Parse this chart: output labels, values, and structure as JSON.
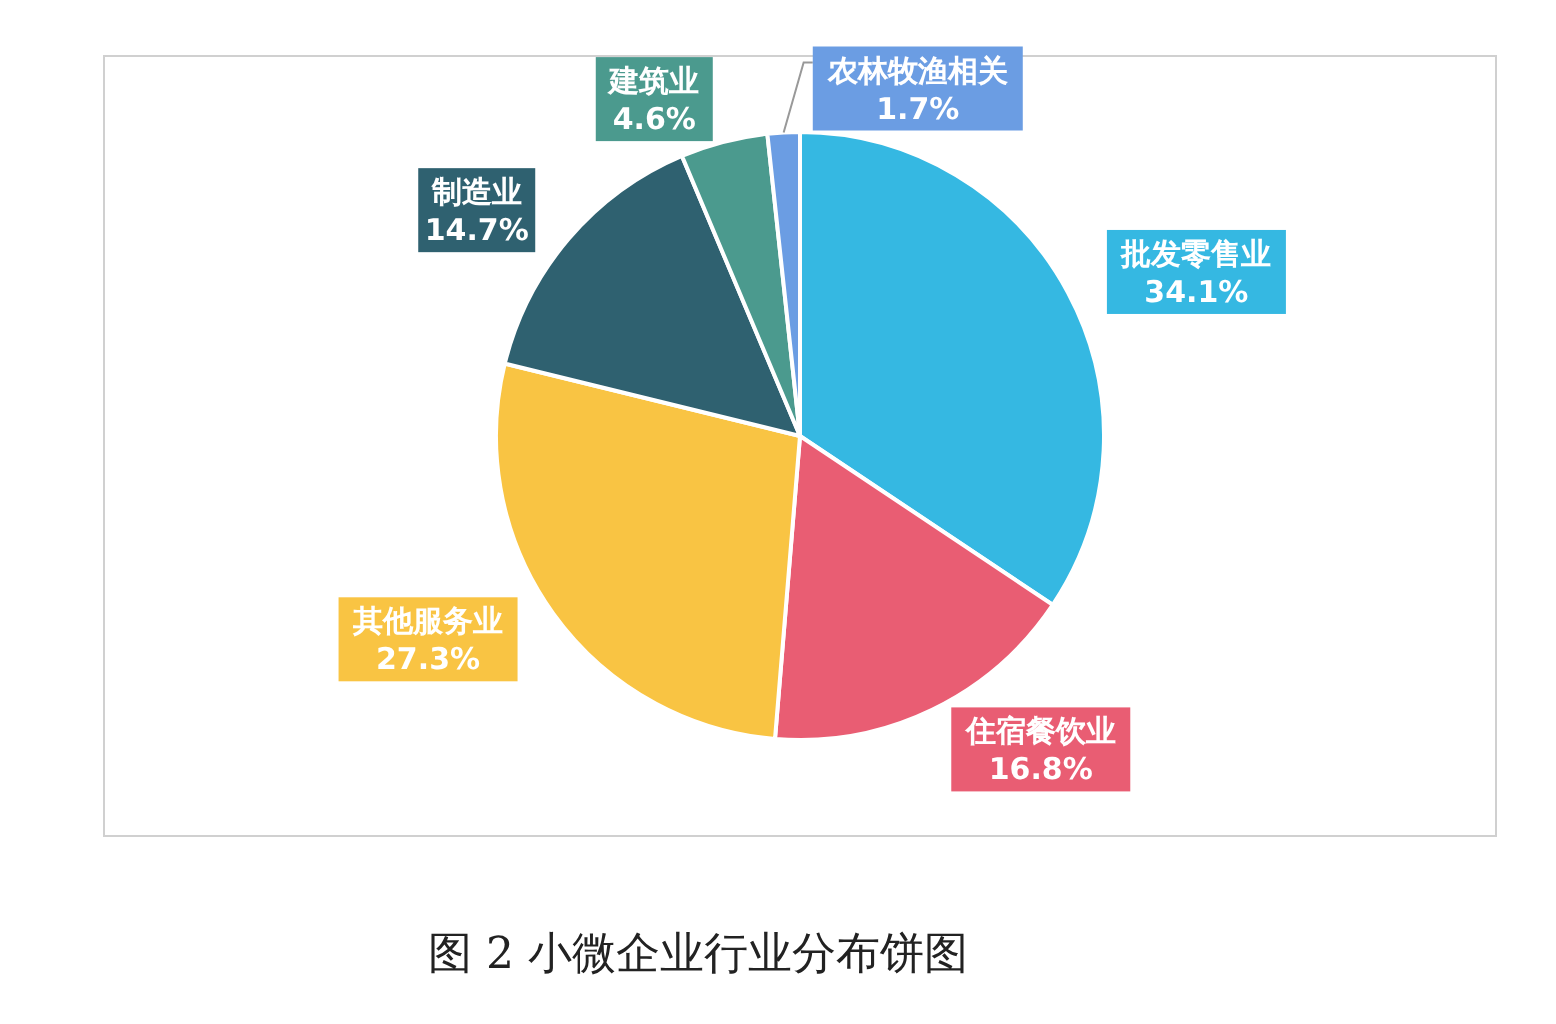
{
  "chart_data": {
    "type": "pie",
    "title": "图 2 小微企业行业分布饼图",
    "categories": [
      "批发零售业",
      "住宿餐饮业",
      "其他服务业",
      "制造业",
      "建筑业",
      "农林牧渔相关"
    ],
    "values": [
      34.1,
      16.8,
      27.3,
      14.7,
      4.6,
      1.7
    ],
    "colors": [
      "#35b8e2",
      "#e95d73",
      "#f9c443",
      "#2f6170",
      "#4b9a8e",
      "#6b9de3"
    ],
    "value_labels": [
      "34.1%",
      "16.8%",
      "27.3%",
      "14.7%",
      "4.6%",
      "1.7%"
    ]
  }
}
